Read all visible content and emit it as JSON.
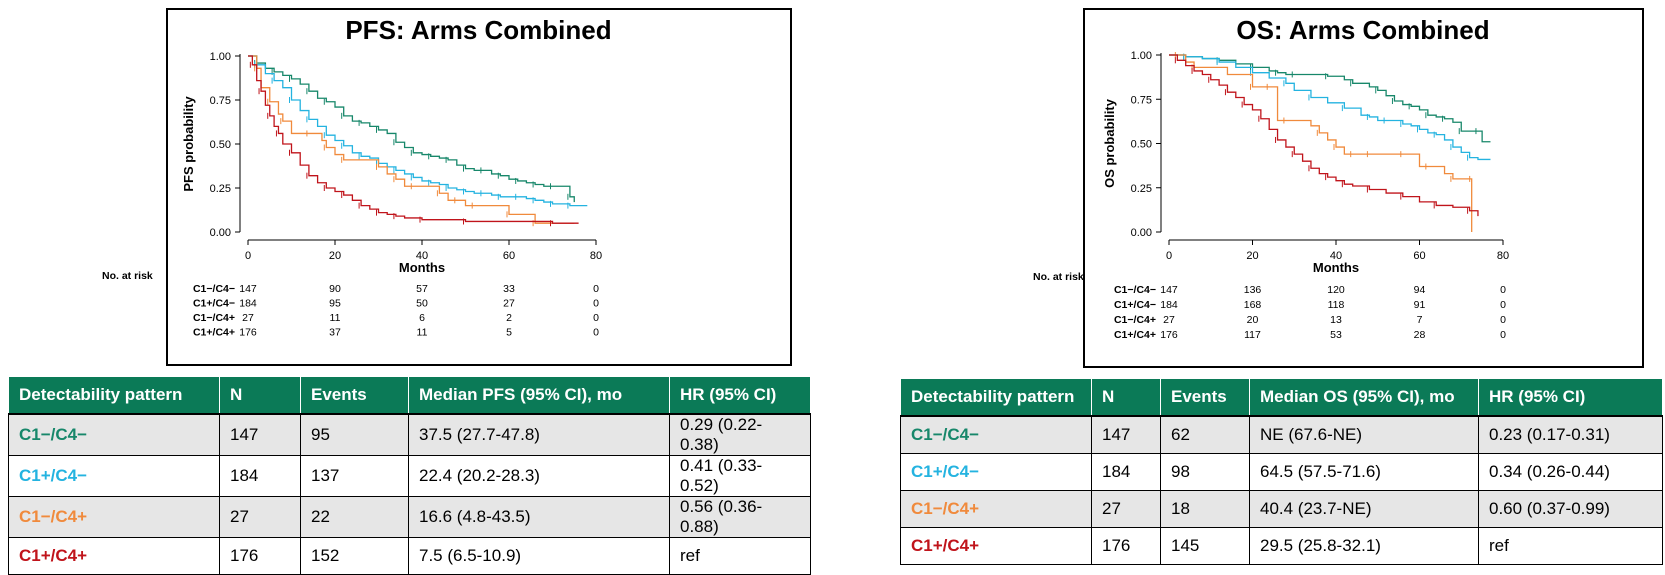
{
  "colors": {
    "C1-/C4-": "#17876a",
    "C1+/C4-": "#24b3e0",
    "C1-/C4+": "#f08a3c",
    "C1+/C4+": "#c0141b",
    "header": "#0b7a57"
  },
  "chart_data": [
    {
      "type": "line",
      "title": "PFS: Arms Combined",
      "xlabel": "Months",
      "ylabel": "PFS probability",
      "xlim": [
        0,
        80
      ],
      "ylim": [
        0,
        1
      ],
      "xticks": [
        0,
        20,
        40,
        60,
        80
      ],
      "yticks": [
        "0.00",
        "0.25",
        "0.50",
        "0.75",
        "1.00"
      ],
      "risk_title": "No. at risk",
      "risk_times": [
        0,
        20,
        40,
        60,
        80
      ],
      "series": [
        {
          "name": "C1−/C4−",
          "color": "#17876a",
          "x": [
            0,
            2,
            4,
            6,
            8,
            10,
            12,
            14,
            16,
            18,
            20,
            22,
            24,
            26,
            28,
            30,
            32,
            34,
            36,
            38,
            40,
            42,
            44,
            46,
            48,
            50,
            52,
            54,
            56,
            58,
            60,
            62,
            64,
            66,
            68,
            70,
            72,
            74,
            75
          ],
          "y": [
            1.0,
            0.96,
            0.93,
            0.91,
            0.89,
            0.87,
            0.84,
            0.8,
            0.76,
            0.74,
            0.71,
            0.66,
            0.63,
            0.62,
            0.6,
            0.58,
            0.56,
            0.51,
            0.48,
            0.45,
            0.44,
            0.43,
            0.42,
            0.41,
            0.38,
            0.36,
            0.35,
            0.35,
            0.33,
            0.32,
            0.3,
            0.29,
            0.28,
            0.27,
            0.26,
            0.26,
            0.26,
            0.2,
            0.17
          ],
          "at_risk": [
            "147",
            "90",
            "57",
            "33",
            "0"
          ]
        },
        {
          "name": "C1+/C4−",
          "color": "#24b3e0",
          "x": [
            0,
            2,
            4,
            6,
            8,
            10,
            12,
            14,
            16,
            18,
            20,
            22,
            24,
            26,
            28,
            30,
            32,
            34,
            36,
            38,
            40,
            42,
            44,
            46,
            48,
            50,
            52,
            54,
            56,
            58,
            60,
            62,
            64,
            66,
            68,
            70,
            72,
            74,
            78
          ],
          "y": [
            1.0,
            0.95,
            0.9,
            0.86,
            0.82,
            0.75,
            0.69,
            0.64,
            0.6,
            0.55,
            0.52,
            0.49,
            0.45,
            0.43,
            0.42,
            0.39,
            0.37,
            0.35,
            0.33,
            0.31,
            0.29,
            0.28,
            0.27,
            0.25,
            0.24,
            0.23,
            0.22,
            0.22,
            0.21,
            0.2,
            0.2,
            0.2,
            0.19,
            0.18,
            0.17,
            0.16,
            0.16,
            0.15,
            0.15
          ],
          "at_risk": [
            "184",
            "95",
            "50",
            "27",
            "0"
          ]
        },
        {
          "name": "C1−/C4+",
          "color": "#f08a3c",
          "x": [
            0,
            2,
            3,
            5,
            7,
            8,
            10,
            14,
            17,
            18,
            20,
            22,
            25,
            30,
            32,
            34,
            36,
            38,
            40,
            44,
            46,
            48,
            50,
            52,
            58,
            60,
            64,
            66,
            75
          ],
          "y": [
            1.0,
            0.93,
            0.82,
            0.74,
            0.67,
            0.63,
            0.56,
            0.56,
            0.52,
            0.48,
            0.44,
            0.41,
            0.41,
            0.37,
            0.33,
            0.3,
            0.26,
            0.26,
            0.26,
            0.22,
            0.18,
            0.18,
            0.15,
            0.15,
            0.15,
            0.1,
            0.1,
            0.05,
            0.05
          ],
          "at_risk": [
            "27",
            "11",
            "6",
            "2",
            "0"
          ]
        },
        {
          "name": "C1+/C4+",
          "color": "#c0141b",
          "x": [
            0,
            1,
            2,
            3,
            4,
            5,
            6,
            7,
            8,
            10,
            12,
            14,
            16,
            18,
            20,
            22,
            24,
            26,
            28,
            30,
            32,
            34,
            36,
            40,
            44,
            50,
            60,
            70,
            76
          ],
          "y": [
            1.0,
            0.95,
            0.86,
            0.8,
            0.72,
            0.66,
            0.6,
            0.56,
            0.5,
            0.45,
            0.38,
            0.32,
            0.28,
            0.25,
            0.23,
            0.21,
            0.18,
            0.15,
            0.13,
            0.11,
            0.1,
            0.09,
            0.08,
            0.07,
            0.07,
            0.06,
            0.06,
            0.05,
            0.05
          ],
          "at_risk": [
            "176",
            "37",
            "11",
            "5",
            "0"
          ]
        }
      ]
    },
    {
      "type": "line",
      "title": "OS: Arms Combined",
      "xlabel": "Months",
      "ylabel": "OS probability",
      "xlim": [
        0,
        80
      ],
      "ylim": [
        0,
        1
      ],
      "xticks": [
        0,
        20,
        40,
        60,
        80
      ],
      "yticks": [
        "0.00",
        "0.25",
        "0.50",
        "0.75",
        "1.00"
      ],
      "risk_title": "No. at risk",
      "risk_times": [
        0,
        20,
        40,
        60,
        80
      ],
      "series": [
        {
          "name": "C1−/C4−",
          "color": "#17876a",
          "x": [
            0,
            4,
            8,
            12,
            16,
            20,
            24,
            26,
            28,
            30,
            34,
            38,
            42,
            44,
            48,
            50,
            52,
            54,
            56,
            58,
            60,
            62,
            64,
            66,
            68,
            70,
            72,
            74,
            75,
            77
          ],
          "y": [
            1.0,
            0.99,
            0.98,
            0.97,
            0.95,
            0.93,
            0.91,
            0.9,
            0.89,
            0.89,
            0.89,
            0.88,
            0.86,
            0.84,
            0.82,
            0.8,
            0.77,
            0.74,
            0.72,
            0.71,
            0.69,
            0.66,
            0.65,
            0.64,
            0.62,
            0.57,
            0.57,
            0.57,
            0.51,
            0.51
          ],
          "at_risk": [
            "147",
            "136",
            "120",
            "94",
            "0"
          ]
        },
        {
          "name": "C1+/C4−",
          "color": "#24b3e0",
          "x": [
            0,
            4,
            8,
            12,
            16,
            20,
            24,
            28,
            30,
            34,
            38,
            42,
            46,
            48,
            50,
            52,
            54,
            56,
            58,
            60,
            62,
            64,
            66,
            68,
            70,
            72,
            74,
            77
          ],
          "y": [
            1.0,
            0.99,
            0.98,
            0.96,
            0.93,
            0.9,
            0.87,
            0.84,
            0.8,
            0.76,
            0.73,
            0.7,
            0.66,
            0.65,
            0.63,
            0.63,
            0.63,
            0.61,
            0.6,
            0.58,
            0.56,
            0.55,
            0.52,
            0.48,
            0.45,
            0.42,
            0.41,
            0.41
          ],
          "at_risk": [
            "184",
            "168",
            "118",
            "91",
            "0"
          ]
        },
        {
          "name": "C1−/C4+",
          "color": "#f08a3c",
          "x": [
            0,
            2,
            4,
            6,
            14,
            20,
            22,
            24,
            26,
            28,
            34,
            36,
            38,
            40,
            42,
            44,
            46,
            48,
            54,
            56,
            60,
            62,
            66,
            68,
            72,
            72.5,
            72.5
          ],
          "y": [
            1.0,
            1.0,
            0.96,
            0.93,
            0.89,
            0.82,
            0.82,
            0.82,
            0.63,
            0.63,
            0.6,
            0.56,
            0.52,
            0.48,
            0.44,
            0.44,
            0.44,
            0.44,
            0.44,
            0.44,
            0.37,
            0.37,
            0.33,
            0.3,
            0.3,
            0.3,
            0.0
          ],
          "at_risk": [
            "27",
            "20",
            "13",
            "7",
            "0"
          ]
        },
        {
          "name": "C1+/C4+",
          "color": "#c0141b",
          "x": [
            0,
            2,
            4,
            6,
            8,
            10,
            12,
            14,
            16,
            18,
            20,
            22,
            24,
            26,
            28,
            30,
            32,
            34,
            36,
            38,
            40,
            42,
            44,
            48,
            52,
            56,
            60,
            64,
            68,
            72,
            74
          ],
          "y": [
            1.0,
            0.97,
            0.94,
            0.91,
            0.89,
            0.86,
            0.83,
            0.79,
            0.76,
            0.72,
            0.69,
            0.64,
            0.58,
            0.52,
            0.48,
            0.44,
            0.4,
            0.36,
            0.33,
            0.31,
            0.29,
            0.27,
            0.26,
            0.24,
            0.22,
            0.2,
            0.17,
            0.15,
            0.14,
            0.12,
            0.09
          ],
          "at_risk": [
            "176",
            "117",
            "53",
            "28",
            "0"
          ]
        }
      ]
    }
  ],
  "tables": [
    {
      "headers": [
        "Detectability pattern",
        "N",
        "Events",
        "Median PFS (95% CI), mo",
        "HR  (95% CI)"
      ],
      "rows": [
        {
          "pattern": "C1−/C4−",
          "n": "147",
          "events": "95",
          "median": "37.5 (27.7-47.8)",
          "hr": "0.29 (0.22-0.38)",
          "color": "#17876a"
        },
        {
          "pattern": "C1+/C4−",
          "n": "184",
          "events": "137",
          "median": "22.4 (20.2-28.3)",
          "hr": "0.41 (0.33-0.52)",
          "color": "#24b3e0"
        },
        {
          "pattern": "C1−/C4+",
          "n": "27",
          "events": "22",
          "median": "16.6 (4.8-43.5)",
          "hr": "0.56 (0.36-0.88)",
          "color": "#f08a3c"
        },
        {
          "pattern": "C1+/C4+",
          "n": "176",
          "events": "152",
          "median": "7.5 (6.5-10.9)",
          "hr": "ref",
          "color": "#c0141b"
        }
      ]
    },
    {
      "headers": [
        "Detectability pattern",
        "N",
        "Events",
        "Median OS (95% CI), mo",
        "HR  (95% CI)"
      ],
      "rows": [
        {
          "pattern": "C1−/C4−",
          "n": "147",
          "events": "62",
          "median": "NE (67.6-NE)",
          "hr": "0.23 (0.17-0.31)",
          "color": "#17876a"
        },
        {
          "pattern": "C1+/C4−",
          "n": "184",
          "events": "98",
          "median": "64.5 (57.5-71.6)",
          "hr": "0.34 (0.26-0.44)",
          "color": "#24b3e0"
        },
        {
          "pattern": "C1−/C4+",
          "n": "27",
          "events": "18",
          "median": "40.4 (23.7-NE)",
          "hr": "0.60 (0.37-0.99)",
          "color": "#f08a3c"
        },
        {
          "pattern": "C1+/C4+",
          "n": "176",
          "events": "145",
          "median": "29.5 (25.8-32.1)",
          "hr": "ref",
          "color": "#c0141b"
        }
      ]
    }
  ]
}
